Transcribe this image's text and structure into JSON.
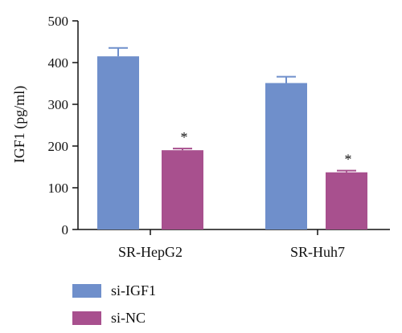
{
  "chart_data": {
    "type": "bar",
    "categories": [
      "SR-HepG2",
      "SR-Huh7"
    ],
    "series": [
      {
        "name": "si-IGF1",
        "values": [
          415,
          351
        ],
        "errors": [
          20,
          15
        ],
        "color": "#6f8fcb"
      },
      {
        "name": "si-NC",
        "values": [
          190,
          137
        ],
        "errors": [
          4,
          4
        ],
        "color": "#a8508e"
      }
    ],
    "annotations": [
      {
        "category": "SR-HepG2",
        "series": "si-NC",
        "text": "*"
      },
      {
        "category": "SR-Huh7",
        "series": "si-NC",
        "text": "*"
      }
    ],
    "ylabel": "IGF1 (pg/ml)",
    "xlabel": "",
    "ylim": [
      0,
      500
    ],
    "yticks": [
      0,
      100,
      200,
      300,
      400,
      500
    ],
    "grid": false,
    "legend_position": "bottom-left"
  }
}
